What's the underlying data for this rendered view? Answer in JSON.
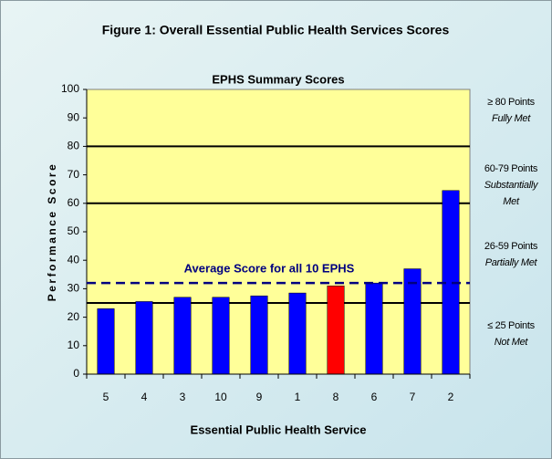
{
  "chart_data": {
    "type": "bar",
    "figure_title": "Figure 1:  Overall Essential Public Health Services Scores",
    "title": "EPHS Summary Scores",
    "xlabel": "Essential Public Health Service",
    "ylabel": "Performance Score",
    "categories": [
      "5",
      "4",
      "3",
      "10",
      "9",
      "1",
      "8",
      "6",
      "7",
      "2"
    ],
    "values": [
      23,
      25.5,
      27,
      27,
      27.5,
      28.5,
      31,
      32,
      37,
      64.5
    ],
    "colors": [
      "#0000ff",
      "#0000ff",
      "#0000ff",
      "#0000ff",
      "#0000ff",
      "#0000ff",
      "#ff0000",
      "#0000ff",
      "#0000ff",
      "#0000ff"
    ],
    "ylim": [
      0,
      100
    ],
    "yticks": [
      0,
      10,
      20,
      30,
      40,
      50,
      60,
      70,
      80,
      90,
      100
    ],
    "reference_lines": [
      80,
      60,
      25
    ],
    "average": {
      "value": 32,
      "label": "Average Score for all 10 EPHS"
    },
    "annotations": [
      [
        "≥ 80 Points",
        "Fully Met"
      ],
      [
        "60-79 Points",
        "Substantially",
        "Met"
      ],
      [
        "26-59 Points",
        "Partially Met"
      ],
      [
        "≤ 25 Points",
        "Not Met"
      ]
    ]
  }
}
